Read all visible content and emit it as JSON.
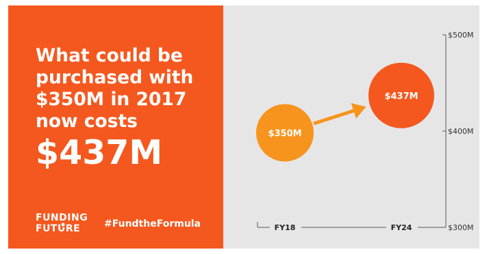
{
  "headline": "What could be purchased with $350M in 2017 now costs",
  "big_value": "$437M",
  "logo": {
    "line1": "FUNDING",
    "line2": "FUTURE"
  },
  "hashtag": "#FundtheFormula",
  "colors": {
    "left_panel": "#f4581e",
    "right_panel": "#e6e6e6",
    "bubble_start": "#f7941d",
    "bubble_end": "#f4581e",
    "arrow": "#f7941d",
    "axis": "#555555"
  },
  "chart_data": {
    "type": "scatter",
    "x_categories": [
      "FY18",
      "FY24"
    ],
    "points": [
      {
        "x": "FY18",
        "y": 350,
        "label": "$350M",
        "color": "#f7941d"
      },
      {
        "x": "FY24",
        "y": 437,
        "label": "$437M",
        "color": "#f4581e"
      }
    ],
    "y_ticks": [
      {
        "value": 500,
        "label": "$500M"
      },
      {
        "value": 400,
        "label": "$400M"
      },
      {
        "value": 300,
        "label": "$300M"
      }
    ],
    "ylim": [
      300,
      500
    ],
    "annotation": "arrow from FY18 to FY24",
    "grid": false
  }
}
